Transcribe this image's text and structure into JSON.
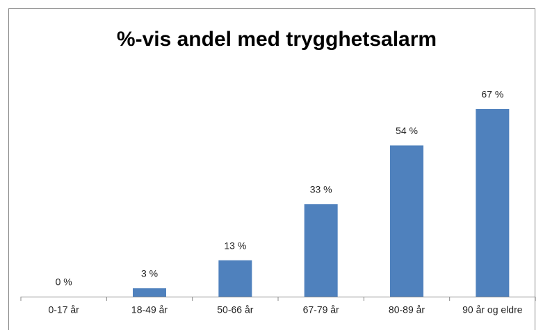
{
  "chart_data": {
    "type": "bar",
    "title": "%-vis andel med trygghetsalarm",
    "categories": [
      "0-17 år",
      "18-49 år",
      "50-66 år",
      "67-79 år",
      "80-89 år",
      "90 år og eldre"
    ],
    "values": [
      0,
      3,
      13,
      33,
      54,
      67
    ],
    "value_labels": [
      "0 %",
      "3 %",
      "13 %",
      "33 %",
      "54 %",
      "67 %"
    ],
    "color": "#4f81bd"
  }
}
